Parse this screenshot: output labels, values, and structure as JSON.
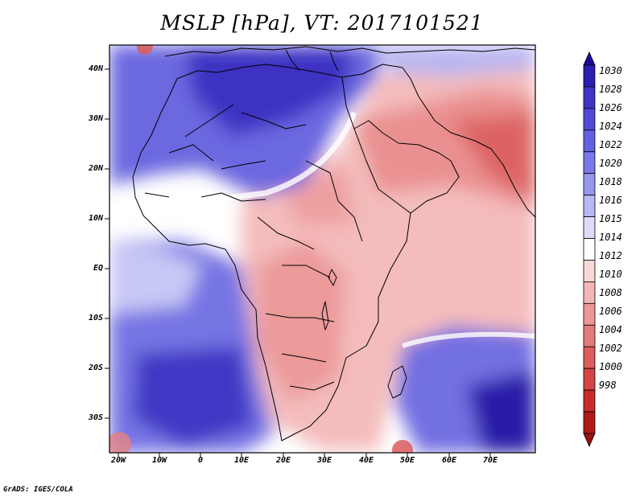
{
  "title": "MSLP [hPa], VT: 2017101521",
  "credit": "GrADS: IGES/COLA",
  "map": {
    "projection": "lat-lon",
    "lon_range": [
      -23,
      80
    ],
    "lat_range": [
      -36,
      45
    ],
    "lat_ticks": [
      "40N",
      "30N",
      "20N",
      "10N",
      "EQ",
      "10S",
      "20S",
      "30S"
    ],
    "lon_ticks": [
      "20W",
      "10W",
      "0",
      "10E",
      "20E",
      "30E",
      "40E",
      "50E",
      "60E",
      "70E"
    ]
  },
  "colorbar": {
    "levels": [
      "1030",
      "1028",
      "1026",
      "1024",
      "1022",
      "1020",
      "1018",
      "1016",
      "1015",
      "1014",
      "1012",
      "1010",
      "1008",
      "1006",
      "1004",
      "1002",
      "1000",
      "998"
    ],
    "colors": [
      "#1c0a96",
      "#2c1eb0",
      "#3f34c6",
      "#5248d6",
      "#6460e2",
      "#7a78ea",
      "#9796ee",
      "#b8b8f4",
      "#dcdcfa",
      "#ffffff",
      "#fad8d8",
      "#f3b6b6",
      "#ec9898",
      "#e47a7a",
      "#dd5d5d",
      "#d44444",
      "#c82c2c",
      "#b21a1a",
      "#9c1010"
    ]
  },
  "colors": {
    "ocean_high": "#5a54d8",
    "ocean_mid": "#9090ea",
    "neutral": "#ffffff",
    "low": "#f0a8a8",
    "low_strong": "#d85454"
  }
}
